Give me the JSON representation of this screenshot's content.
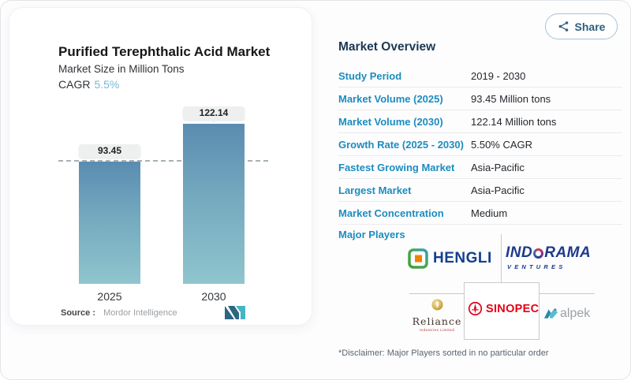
{
  "colors": {
    "accent_blue": "#1d8cbe",
    "heading_navy": "#1c3852",
    "cagr_blue": "#7ab6d6",
    "bar_gradient_top": "#5a8cb0",
    "bar_gradient_bottom": "#8fc5cd",
    "hengli_blue": "#143f8e",
    "indorama_blue": "#1d3a8c",
    "sinopec_red": "#e60012",
    "reliance_gold": "#c79a3b",
    "alpek_teal": "#4db3c4",
    "mordor_dark": "#2d6583",
    "mordor_teal": "#45b5c4"
  },
  "share": {
    "label": "Share"
  },
  "chart_card": {
    "title": "Purified Terephthalic Acid Market",
    "subtitle": "Market Size in Million Tons",
    "cagr_label": "CAGR",
    "cagr_value": "5.5%",
    "source_label": "Source :",
    "source_value": "Mordor Intelligence"
  },
  "chart_data": {
    "type": "bar",
    "title": "Purified Terephthalic Acid Market",
    "subtitle": "Market Size in Million Tons",
    "unit": "Million Tons",
    "categories": [
      "2025",
      "2030"
    ],
    "values": [
      93.45,
      122.14
    ],
    "bar_labels": [
      "93.45",
      "122.14"
    ],
    "reference_line_value": 93.45,
    "ylim": [
      0,
      130
    ],
    "grid": false,
    "legend": false
  },
  "overview": {
    "title": "Market Overview",
    "rows": [
      {
        "label": "Study Period",
        "value": "2019 - 2030"
      },
      {
        "label": "Market Volume (2025)",
        "value": "93.45 Million tons"
      },
      {
        "label": "Market Volume (2030)",
        "value": "122.14 Million tons"
      },
      {
        "label": "Growth Rate (2025 - 2030)",
        "value": "5.50% CAGR"
      },
      {
        "label": "Fastest Growing Market",
        "value": "Asia-Pacific"
      },
      {
        "label": "Largest Market",
        "value": "Asia-Pacific"
      },
      {
        "label": "Market Concentration",
        "value": "Medium"
      }
    ],
    "major_players": {
      "label": "Major Players",
      "hengli": {
        "name": "HENGLI"
      },
      "indorama": {
        "name_pre": "IND",
        "name_post": "RAMA",
        "subname": "VENTURES"
      },
      "reliance": {
        "name": "Reliance",
        "subname": "Industries Limited"
      },
      "sinopec": {
        "name": "SINOPEC"
      },
      "alpek": {
        "name": "alpek"
      }
    },
    "disclaimer": "*Disclaimer: Major Players sorted in no particular order"
  }
}
